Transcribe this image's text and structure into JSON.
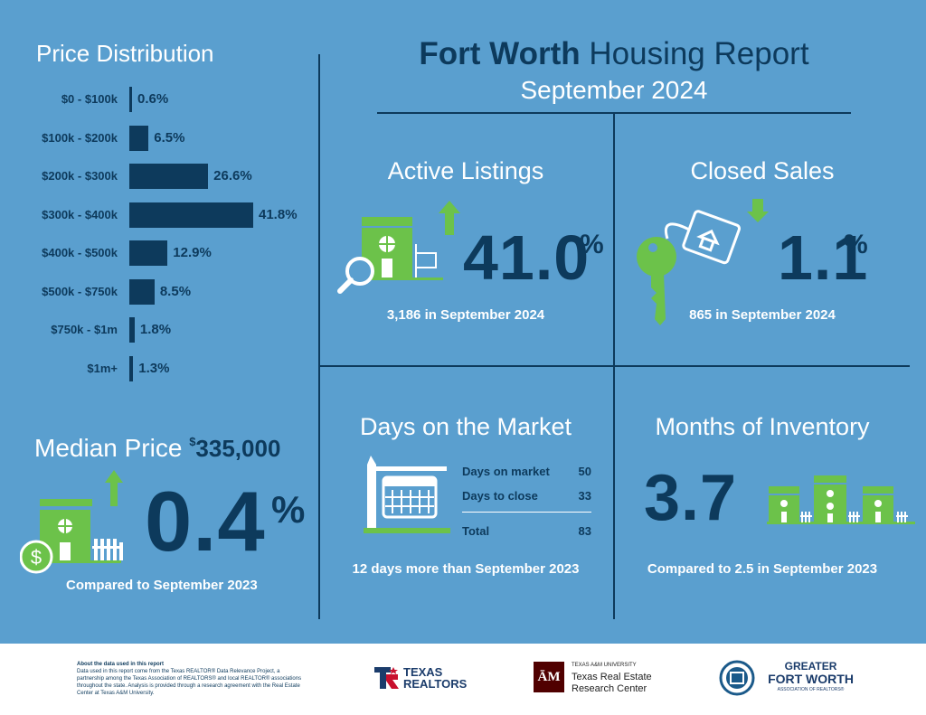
{
  "price_distribution": {
    "title": "Price Distribution",
    "ranges": [
      {
        "label": "$0 - $100k",
        "value": "0.6%",
        "pct": 0.6
      },
      {
        "label": "$100k - $200k",
        "value": "6.5%",
        "pct": 6.5
      },
      {
        "label": "$200k - $300k",
        "value": "26.6%",
        "pct": 26.6
      },
      {
        "label": "$300k - $400k",
        "value": "41.8%",
        "pct": 41.8
      },
      {
        "label": "$400k - $500k",
        "value": "12.9%",
        "pct": 12.9
      },
      {
        "label": "$500k - $750k",
        "value": "8.5%",
        "pct": 8.5
      },
      {
        "label": "$750k - $1m",
        "value": "1.8%",
        "pct": 1.8
      },
      {
        "label": "$1m+",
        "value": "1.3%",
        "pct": 1.3
      }
    ]
  },
  "header": {
    "title_bold": "Fort Worth",
    "title_rest": "Housing Report",
    "subtitle": "September 2024"
  },
  "active_listings": {
    "title": "Active Listings",
    "value": "41.0",
    "unit": "%",
    "caption": "3,186 in September 2024"
  },
  "closed_sales": {
    "title": "Closed Sales",
    "value": "1.1",
    "unit": "%",
    "caption": "865 in September 2024"
  },
  "median_price": {
    "title": "Median Price",
    "dollar": "$",
    "amount": "335,000",
    "value": "0.4",
    "unit": "%",
    "caption": "Compared to September 2023"
  },
  "days_on_market": {
    "title": "Days on the Market",
    "rows": [
      {
        "label": "Days on market",
        "value": "50"
      },
      {
        "label": "Days to close",
        "value": "33"
      }
    ],
    "total_label": "Total",
    "total_value": "83",
    "caption": "12 days more than September 2023"
  },
  "months_inventory": {
    "title": "Months of Inventory",
    "value": "3.7",
    "caption": "Compared to 2.5 in September 2023"
  },
  "footer": {
    "about_title": "About the data used in this report",
    "about_text": "Data used in this report come from the Texas REALTOR® Data Relevance Project, a partnership among the Texas Association of REALTORS® and local REALTOR® associations throughout the state. Analysis is provided through a research agreement with the Real Estate Center at Texas A&M University.",
    "texas_realtors_1": "TEXAS",
    "texas_realtors_2": "REALTORS",
    "tamu_small": "TEXAS A&M UNIVERSITY",
    "tamu_line1": "Texas Real Estate",
    "tamu_line2": "Research Center",
    "gfw_line1": "GREATER",
    "gfw_line2": "FORT WORTH",
    "gfw_line3": "ASSOCIATION OF REALTORS®"
  },
  "colors": {
    "background": "#5a9fcf",
    "navy": "#0d3a5c",
    "green": "#6cc24a",
    "white": "#ffffff"
  }
}
